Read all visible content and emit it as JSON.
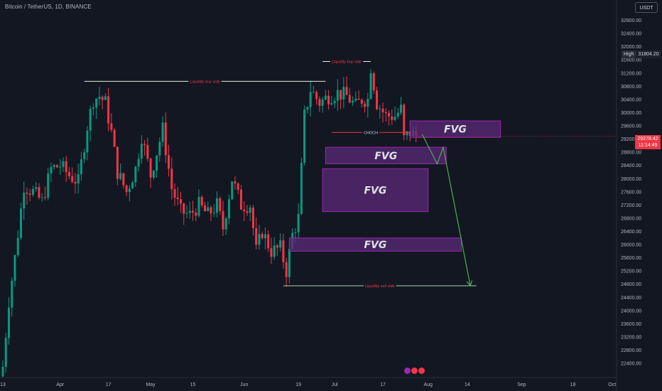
{
  "header": {
    "symbol_title": "Bitcoin / TetherUS, 1D, BINANCE",
    "currency_button": "USDT"
  },
  "price_axis": {
    "high_label": "High",
    "high_value": "31804.20",
    "last_price": "29278.42",
    "countdown": "11:14:49"
  },
  "colors": {
    "background": "#131722",
    "up": "#089981",
    "down": "#f23645",
    "fvg_fill": "#5b2a7a",
    "fvg_stroke": "#9c27b0",
    "arrow": "#4caf50"
  },
  "chart_data": {
    "type": "candlestick",
    "title": "Bitcoin / TetherUS, 1D, BINANCE",
    "ylim": [
      22100,
      33200
    ],
    "y_ticks": [
      22400,
      22800,
      23200,
      23600,
      24000,
      24400,
      24800,
      25200,
      25600,
      26000,
      26400,
      26800,
      27200,
      27600,
      28000,
      28400,
      28800,
      29200,
      29600,
      30000,
      30400,
      30800,
      31200,
      31600,
      32000,
      32400,
      32800
    ],
    "x_ticks": [
      {
        "label": "13",
        "date": "2023-03-13"
      },
      {
        "label": "Apr",
        "date": "2023-04-01"
      },
      {
        "label": "17",
        "date": "2023-04-17"
      },
      {
        "label": "May",
        "date": "2023-05-01"
      },
      {
        "label": "15",
        "date": "2023-05-15"
      },
      {
        "label": "Jun",
        "date": "2023-06-01"
      },
      {
        "label": "19",
        "date": "2023-06-19"
      },
      {
        "label": "Jul",
        "date": "2023-07-01"
      },
      {
        "label": "17",
        "date": "2023-07-17"
      },
      {
        "label": "Aug",
        "date": "2023-08-01"
      },
      {
        "label": "14",
        "date": "2023-08-14"
      },
      {
        "label": "Sep",
        "date": "2023-09-01"
      },
      {
        "label": "18",
        "date": "2023-09-18"
      },
      {
        "label": "Oct",
        "date": "2023-10-01"
      }
    ],
    "x_range": [
      "2023-03-13",
      "2023-10-02"
    ],
    "close_path": [
      [
        "2023-03-13",
        22300
      ],
      [
        "2023-03-15",
        24300
      ],
      [
        "2023-03-17",
        25600
      ],
      [
        "2023-03-20",
        27800
      ],
      [
        "2023-03-23",
        27600
      ],
      [
        "2023-03-26",
        27300
      ],
      [
        "2023-03-29",
        28300
      ],
      [
        "2023-04-01",
        28400
      ],
      [
        "2023-04-04",
        28100
      ],
      [
        "2023-04-07",
        27900
      ],
      [
        "2023-04-10",
        29600
      ],
      [
        "2023-04-12",
        30400
      ],
      [
        "2023-04-14",
        30500
      ],
      [
        "2023-04-16",
        30300
      ],
      [
        "2023-04-18",
        29400
      ],
      [
        "2023-04-20",
        28200
      ],
      [
        "2023-04-23",
        27600
      ],
      [
        "2023-04-26",
        28300
      ],
      [
        "2023-04-28",
        29300
      ],
      [
        "2023-05-01",
        28100
      ],
      [
        "2023-05-03",
        28800
      ],
      [
        "2023-05-05",
        29500
      ],
      [
        "2023-05-08",
        27700
      ],
      [
        "2023-05-11",
        27000
      ],
      [
        "2023-05-14",
        26900
      ],
      [
        "2023-05-17",
        27200
      ],
      [
        "2023-05-20",
        26900
      ],
      [
        "2023-05-23",
        27200
      ],
      [
        "2023-05-25",
        26500
      ],
      [
        "2023-05-28",
        28000
      ],
      [
        "2023-05-31",
        27200
      ],
      [
        "2023-06-03",
        27200
      ],
      [
        "2023-06-05",
        25800
      ],
      [
        "2023-06-07",
        26400
      ],
      [
        "2023-06-10",
        25800
      ],
      [
        "2023-06-13",
        25900
      ],
      [
        "2023-06-15",
        25200
      ],
      [
        "2023-06-17",
        26300
      ],
      [
        "2023-06-19",
        26800
      ],
      [
        "2023-06-20",
        28300
      ],
      [
        "2023-06-21",
        29900
      ],
      [
        "2023-06-23",
        30700
      ],
      [
        "2023-06-26",
        30300
      ],
      [
        "2023-06-29",
        30500
      ],
      [
        "2023-07-02",
        30600
      ],
      [
        "2023-07-05",
        30500
      ],
      [
        "2023-07-08",
        30200
      ],
      [
        "2023-07-10",
        30400
      ],
      [
        "2023-07-12",
        30400
      ],
      [
        "2023-07-13",
        31400
      ],
      [
        "2023-07-15",
        30300
      ],
      [
        "2023-07-18",
        29900
      ],
      [
        "2023-07-21",
        29900
      ],
      [
        "2023-07-23",
        30100
      ],
      [
        "2023-07-24",
        29200
      ],
      [
        "2023-07-26",
        29400
      ],
      [
        "2023-07-28",
        29300
      ]
    ],
    "last_price": 29278.42,
    "high": 31804.2,
    "lines": [
      {
        "label": "Liquidity buy side",
        "y": 30950,
        "x_start": "2023-04-09",
        "x_end": "2023-06-28"
      },
      {
        "label": "Liquidity buy side",
        "y": 31550,
        "x_start": "2023-06-27",
        "x_end": "2023-07-13"
      },
      {
        "label": "CHOCH",
        "y": 29400,
        "x_start": "2023-06-30",
        "x_end": "2023-07-26"
      },
      {
        "label": "Liquidity sell side",
        "y": 24750,
        "x_start": "2023-06-14",
        "x_end": "2023-08-17"
      }
    ],
    "zones": [
      {
        "label": "FVG",
        "y_low": 29250,
        "y_high": 29750,
        "x_start": "2023-07-26",
        "x_end": "2023-08-25"
      },
      {
        "label": "FVG",
        "y_low": 28450,
        "y_high": 28950,
        "x_start": "2023-06-28",
        "x_end": "2023-08-07"
      },
      {
        "label": "FVG",
        "y_low": 27000,
        "y_high": 28300,
        "x_start": "2023-06-27",
        "x_end": "2023-08-01"
      },
      {
        "label": "FVG",
        "y_low": 25800,
        "y_high": 26200,
        "x_start": "2023-06-16",
        "x_end": "2023-08-12"
      }
    ],
    "projection": [
      [
        "2023-07-30",
        29350
      ],
      [
        "2023-08-04",
        28450
      ],
      [
        "2023-08-06",
        28950
      ],
      [
        "2023-08-15",
        24750
      ]
    ]
  }
}
